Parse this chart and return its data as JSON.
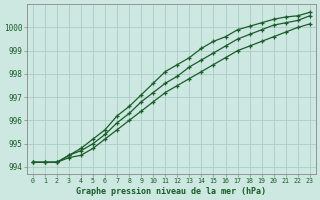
{
  "xlabel": "Graphe pression niveau de la mer (hPa)",
  "bg_color": "#cce8e0",
  "grid_color": "#aaccc4",
  "line_color": "#1a5c2a",
  "xlim": [
    -0.5,
    23.5
  ],
  "ylim": [
    993.7,
    1001.0
  ],
  "yticks": [
    994,
    995,
    996,
    997,
    998,
    999,
    1000
  ],
  "xticks": [
    0,
    1,
    2,
    3,
    4,
    5,
    6,
    7,
    8,
    9,
    10,
    11,
    12,
    13,
    14,
    15,
    16,
    17,
    18,
    19,
    20,
    21,
    22,
    23
  ],
  "series": [
    [
      994.2,
      994.2,
      994.2,
      994.4,
      994.5,
      994.8,
      995.2,
      995.6,
      996.0,
      996.4,
      996.8,
      997.2,
      997.5,
      997.8,
      998.1,
      998.4,
      998.7,
      999.0,
      999.2,
      999.4,
      999.6,
      999.8,
      1000.0,
      1000.15
    ],
    [
      994.2,
      994.2,
      994.2,
      994.5,
      994.7,
      995.0,
      995.4,
      995.9,
      996.3,
      996.8,
      997.2,
      997.6,
      997.9,
      998.3,
      998.6,
      998.9,
      999.2,
      999.5,
      999.7,
      999.9,
      1000.1,
      1000.2,
      1000.3,
      1000.5
    ],
    [
      994.2,
      994.2,
      994.2,
      994.5,
      994.8,
      995.2,
      995.6,
      996.2,
      996.6,
      997.1,
      997.6,
      998.1,
      998.4,
      998.7,
      999.1,
      999.4,
      999.6,
      999.9,
      1000.05,
      1000.2,
      1000.35,
      1000.45,
      1000.5,
      1000.65
    ]
  ]
}
